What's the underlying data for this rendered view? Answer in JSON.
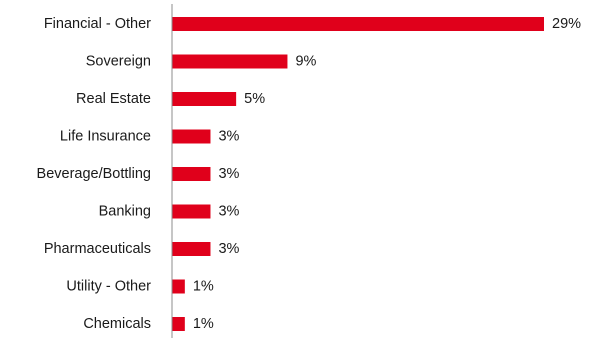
{
  "chart_data": {
    "type": "bar",
    "orientation": "horizontal",
    "title": "",
    "xlabel": "",
    "ylabel": "",
    "xlim": [
      0,
      29
    ],
    "grid": false,
    "legend": "none",
    "bar_color": "#e0001b",
    "axis_color": "#8c8c8c",
    "categories": [
      "Financial - Other",
      "Sovereign",
      "Real Estate",
      "Life Insurance",
      "Beverage/Bottling",
      "Banking",
      "Pharmaceuticals",
      "Utility - Other",
      "Chemicals"
    ],
    "values": [
      29,
      9,
      5,
      3,
      3,
      3,
      3,
      1,
      1
    ],
    "value_labels": [
      "29%",
      "9%",
      "5%",
      "3%",
      "3%",
      "3%",
      "3%",
      "1%",
      "1%"
    ]
  }
}
